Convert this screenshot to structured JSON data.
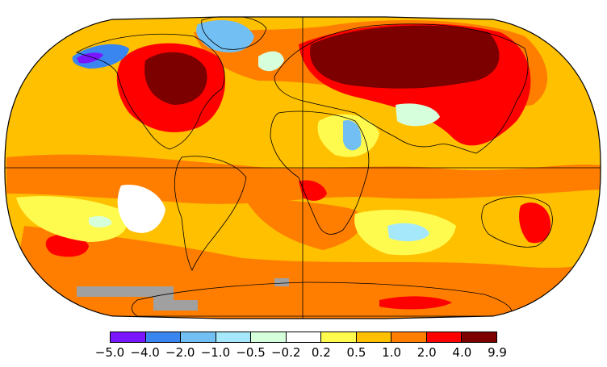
{
  "map": {
    "projection": "Robinson",
    "grid_lines": [
      "equator",
      "prime-meridian"
    ],
    "missing_data_color": "#a0a0a0"
  },
  "legend": {
    "bins": [
      {
        "color": "#7a16ff"
      },
      {
        "color": "#3a86f0"
      },
      {
        "color": "#72bff4"
      },
      {
        "color": "#a5e8fb"
      },
      {
        "color": "#d6ffdb"
      },
      {
        "color": "#ffffff"
      },
      {
        "color": "#fffb4e"
      },
      {
        "color": "#ffc000"
      },
      {
        "color": "#ff7e00"
      },
      {
        "color": "#ff0000"
      },
      {
        "color": "#7d0000"
      }
    ],
    "tick_labels": [
      "−5.0",
      "−4.0",
      "−2.0",
      "−1.0",
      "−0.5",
      "−0.2",
      "0.2",
      "0.5",
      "1.0",
      "2.0",
      "4.0",
      "9.9"
    ]
  }
}
